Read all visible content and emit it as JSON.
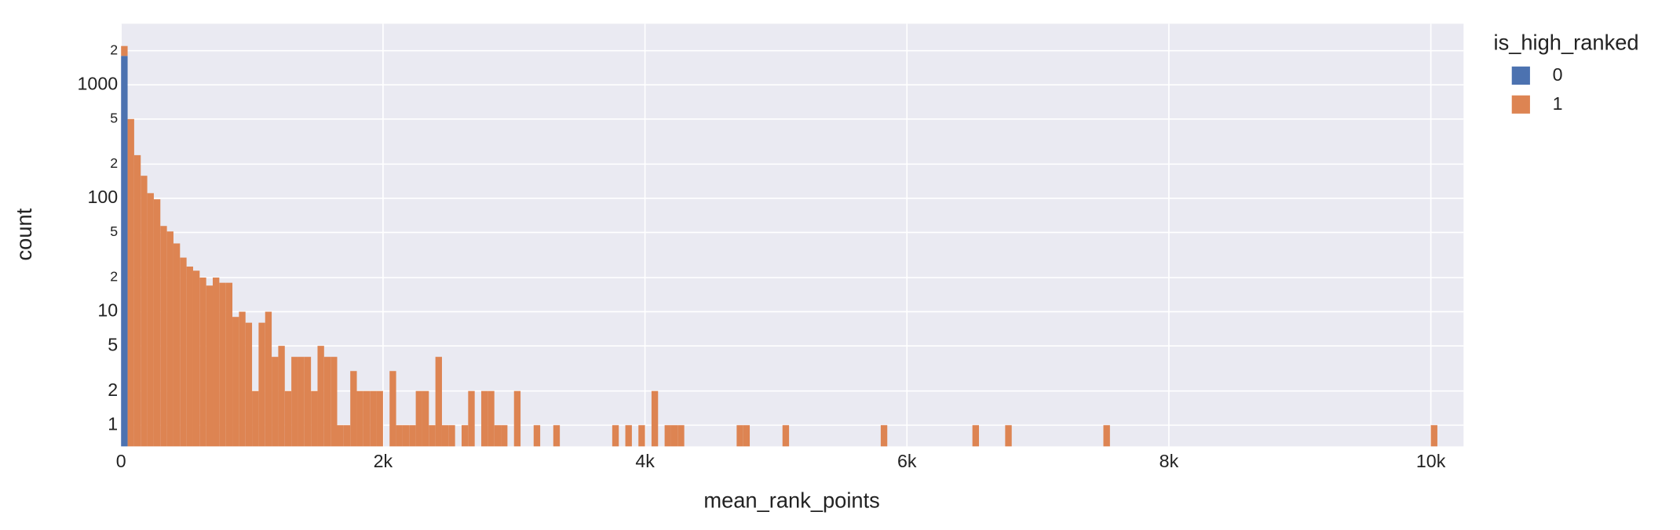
{
  "chart_data": {
    "type": "histogram",
    "x_label": "mean_rank_points",
    "y_label": "count",
    "legend_title": "is_high_ranked",
    "legend_position": "right",
    "log_y": true,
    "grid": true,
    "barmode": "stack",
    "bins": [
      0,
      50,
      100,
      150,
      200,
      250,
      300,
      350,
      400,
      450,
      500,
      550,
      600,
      650,
      700,
      750,
      800,
      850,
      900,
      950,
      1000,
      1050,
      1100,
      1150,
      1200,
      1250,
      1300,
      1350,
      1400,
      1450,
      1500,
      1550,
      1600,
      1650,
      1700,
      1750,
      1800,
      1850,
      1900,
      1950,
      2000,
      2050,
      2100,
      2150,
      2200,
      2250,
      2300,
      2350,
      2400,
      2450,
      2500,
      2550,
      2600,
      2650,
      2700,
      2750,
      2800,
      2850,
      2900,
      2950,
      3000,
      3050,
      3100,
      3150,
      3200,
      3250,
      3300,
      3350,
      3400,
      3450,
      3500,
      3550,
      3600,
      3650,
      3700,
      3750,
      3800,
      3850,
      3900,
      3950,
      4000,
      4050,
      4100,
      4150,
      4200,
      4250,
      4300,
      4350,
      4400,
      4450,
      4500,
      4550,
      4600,
      4650,
      4700,
      4750,
      4800,
      4850,
      4900,
      4950,
      5000,
      5050,
      5100,
      5150,
      5200,
      5250,
      5300,
      5350,
      5400,
      5450,
      5500,
      5550,
      5600,
      5650,
      5700,
      5750,
      5800,
      5850,
      5900,
      5950,
      6000,
      6050,
      6100,
      6150,
      6200,
      6250,
      6300,
      6350,
      6400,
      6450,
      6500,
      6550,
      6600,
      6650,
      6700,
      6750,
      6800,
      6850,
      6900,
      6950,
      7000,
      7050,
      7100,
      7150,
      7200,
      7250,
      7300,
      7350,
      7400,
      7450,
      7500,
      7550,
      7600,
      7650,
      7700,
      7750,
      7800,
      7850,
      7900,
      7950,
      8000,
      8050,
      8100,
      8150,
      8200,
      8250,
      8300,
      8350,
      8400,
      8450,
      8500,
      8550,
      8600,
      8650,
      8700,
      8750,
      8800,
      8850,
      8900,
      8950,
      9000,
      9050,
      9100,
      9150,
      9200,
      9250,
      9300,
      9350,
      9400,
      9450,
      9500,
      9550,
      9600,
      9650,
      9700,
      9750,
      9800,
      9850,
      9900,
      9950,
      10000,
      10050,
      10100,
      10150,
      10200,
      10250
    ],
    "series": [
      {
        "name": "0",
        "color": "#4c72b0",
        "values": [
          1800,
          0,
          0,
          0,
          0,
          0,
          0,
          0,
          0,
          0,
          0,
          0,
          0,
          0,
          0,
          0,
          0,
          0,
          0,
          0,
          0,
          0,
          0,
          0,
          0,
          0,
          0,
          0,
          0,
          0,
          0,
          0,
          0,
          0,
          0,
          0,
          0,
          0,
          0,
          0,
          0,
          0,
          0,
          0,
          0,
          0,
          0,
          0,
          0,
          0,
          0,
          0,
          0,
          0,
          0,
          0,
          0,
          0,
          0,
          0,
          0,
          0,
          0,
          0,
          0,
          0,
          0,
          0,
          0,
          0,
          0,
          0,
          0,
          0,
          0,
          0,
          0,
          0,
          0,
          0,
          0,
          0,
          0,
          0,
          0,
          0,
          0,
          0,
          0,
          0,
          0,
          0,
          0,
          0,
          0,
          0,
          0,
          0,
          0,
          0,
          0,
          0,
          0,
          0,
          0,
          0,
          0,
          0,
          0,
          0,
          0,
          0,
          0,
          0,
          0,
          0,
          0,
          0,
          0,
          0,
          0,
          0,
          0,
          0,
          0,
          0,
          0,
          0,
          0,
          0,
          0,
          0,
          0,
          0,
          0,
          0,
          0,
          0,
          0,
          0,
          0,
          0,
          0,
          0,
          0,
          0,
          0,
          0,
          0,
          0,
          0,
          0,
          0,
          0,
          0,
          0,
          0,
          0,
          0,
          0,
          0,
          0,
          0,
          0,
          0,
          0,
          0,
          0,
          0,
          0,
          0,
          0,
          0,
          0,
          0,
          0,
          0,
          0,
          0,
          0,
          0,
          0,
          0,
          0,
          0,
          0,
          0,
          0,
          0,
          0,
          0,
          0,
          0,
          0,
          0,
          0,
          0,
          0,
          0,
          0,
          0,
          0,
          0,
          0,
          0
        ]
      },
      {
        "name": "1",
        "color": "#dd8452",
        "values": [
          400,
          500,
          240,
          158,
          111,
          98,
          57,
          51,
          40,
          30,
          25,
          23,
          20,
          17,
          20,
          18,
          18,
          9,
          10,
          8,
          2,
          8,
          10,
          4,
          5,
          2,
          4,
          4,
          4,
          2,
          5,
          4,
          4,
          1,
          1,
          3,
          2,
          2,
          2,
          2,
          0,
          3,
          1,
          1,
          1,
          2,
          2,
          1,
          4,
          1,
          1,
          0,
          1,
          2,
          0,
          2,
          2,
          1,
          1,
          0,
          2,
          0,
          0,
          1,
          0,
          0,
          1,
          0,
          0,
          0,
          0,
          0,
          0,
          0,
          0,
          1,
          0,
          1,
          0,
          1,
          0,
          2,
          0,
          1,
          1,
          1,
          0,
          0,
          0,
          0,
          0,
          0,
          0,
          0,
          1,
          1,
          0,
          0,
          0,
          0,
          0,
          1,
          0,
          0,
          0,
          0,
          0,
          0,
          0,
          0,
          0,
          0,
          0,
          0,
          0,
          0,
          1,
          0,
          0,
          0,
          0,
          0,
          0,
          0,
          0,
          0,
          0,
          0,
          0,
          0,
          1,
          0,
          0,
          0,
          0,
          1,
          0,
          0,
          0,
          0,
          0,
          0,
          0,
          0,
          0,
          0,
          0,
          0,
          0,
          0,
          1,
          0,
          0,
          0,
          0,
          0,
          0,
          0,
          0,
          0,
          0,
          0,
          0,
          0,
          0,
          0,
          0,
          0,
          0,
          0,
          0,
          0,
          0,
          0,
          0,
          0,
          0,
          0,
          0,
          0,
          0,
          0,
          0,
          0,
          0,
          0,
          0,
          0,
          0,
          0,
          0,
          0,
          0,
          0,
          0,
          0,
          0,
          0,
          0,
          0,
          1
        ]
      }
    ],
    "xlim": [
      0,
      10250
    ],
    "xticks": [
      0,
      {
        "value": 2000,
        "label": "2k"
      },
      {
        "value": 4000,
        "label": "4k"
      },
      {
        "value": 6000,
        "label": "6k"
      },
      {
        "value": 8000,
        "label": "8k"
      },
      {
        "value": 10000,
        "label": "10k"
      }
    ],
    "ylim": [
      0.65,
      3460
    ],
    "yticks": [
      1,
      2,
      5,
      10,
      {
        "value": 20,
        "label": "2"
      },
      {
        "value": 50,
        "label": "5"
      },
      100,
      {
        "value": 200,
        "label": "2"
      },
      {
        "value": 500,
        "label": "5"
      },
      1000,
      {
        "value": 2000,
        "label": "2"
      }
    ]
  }
}
